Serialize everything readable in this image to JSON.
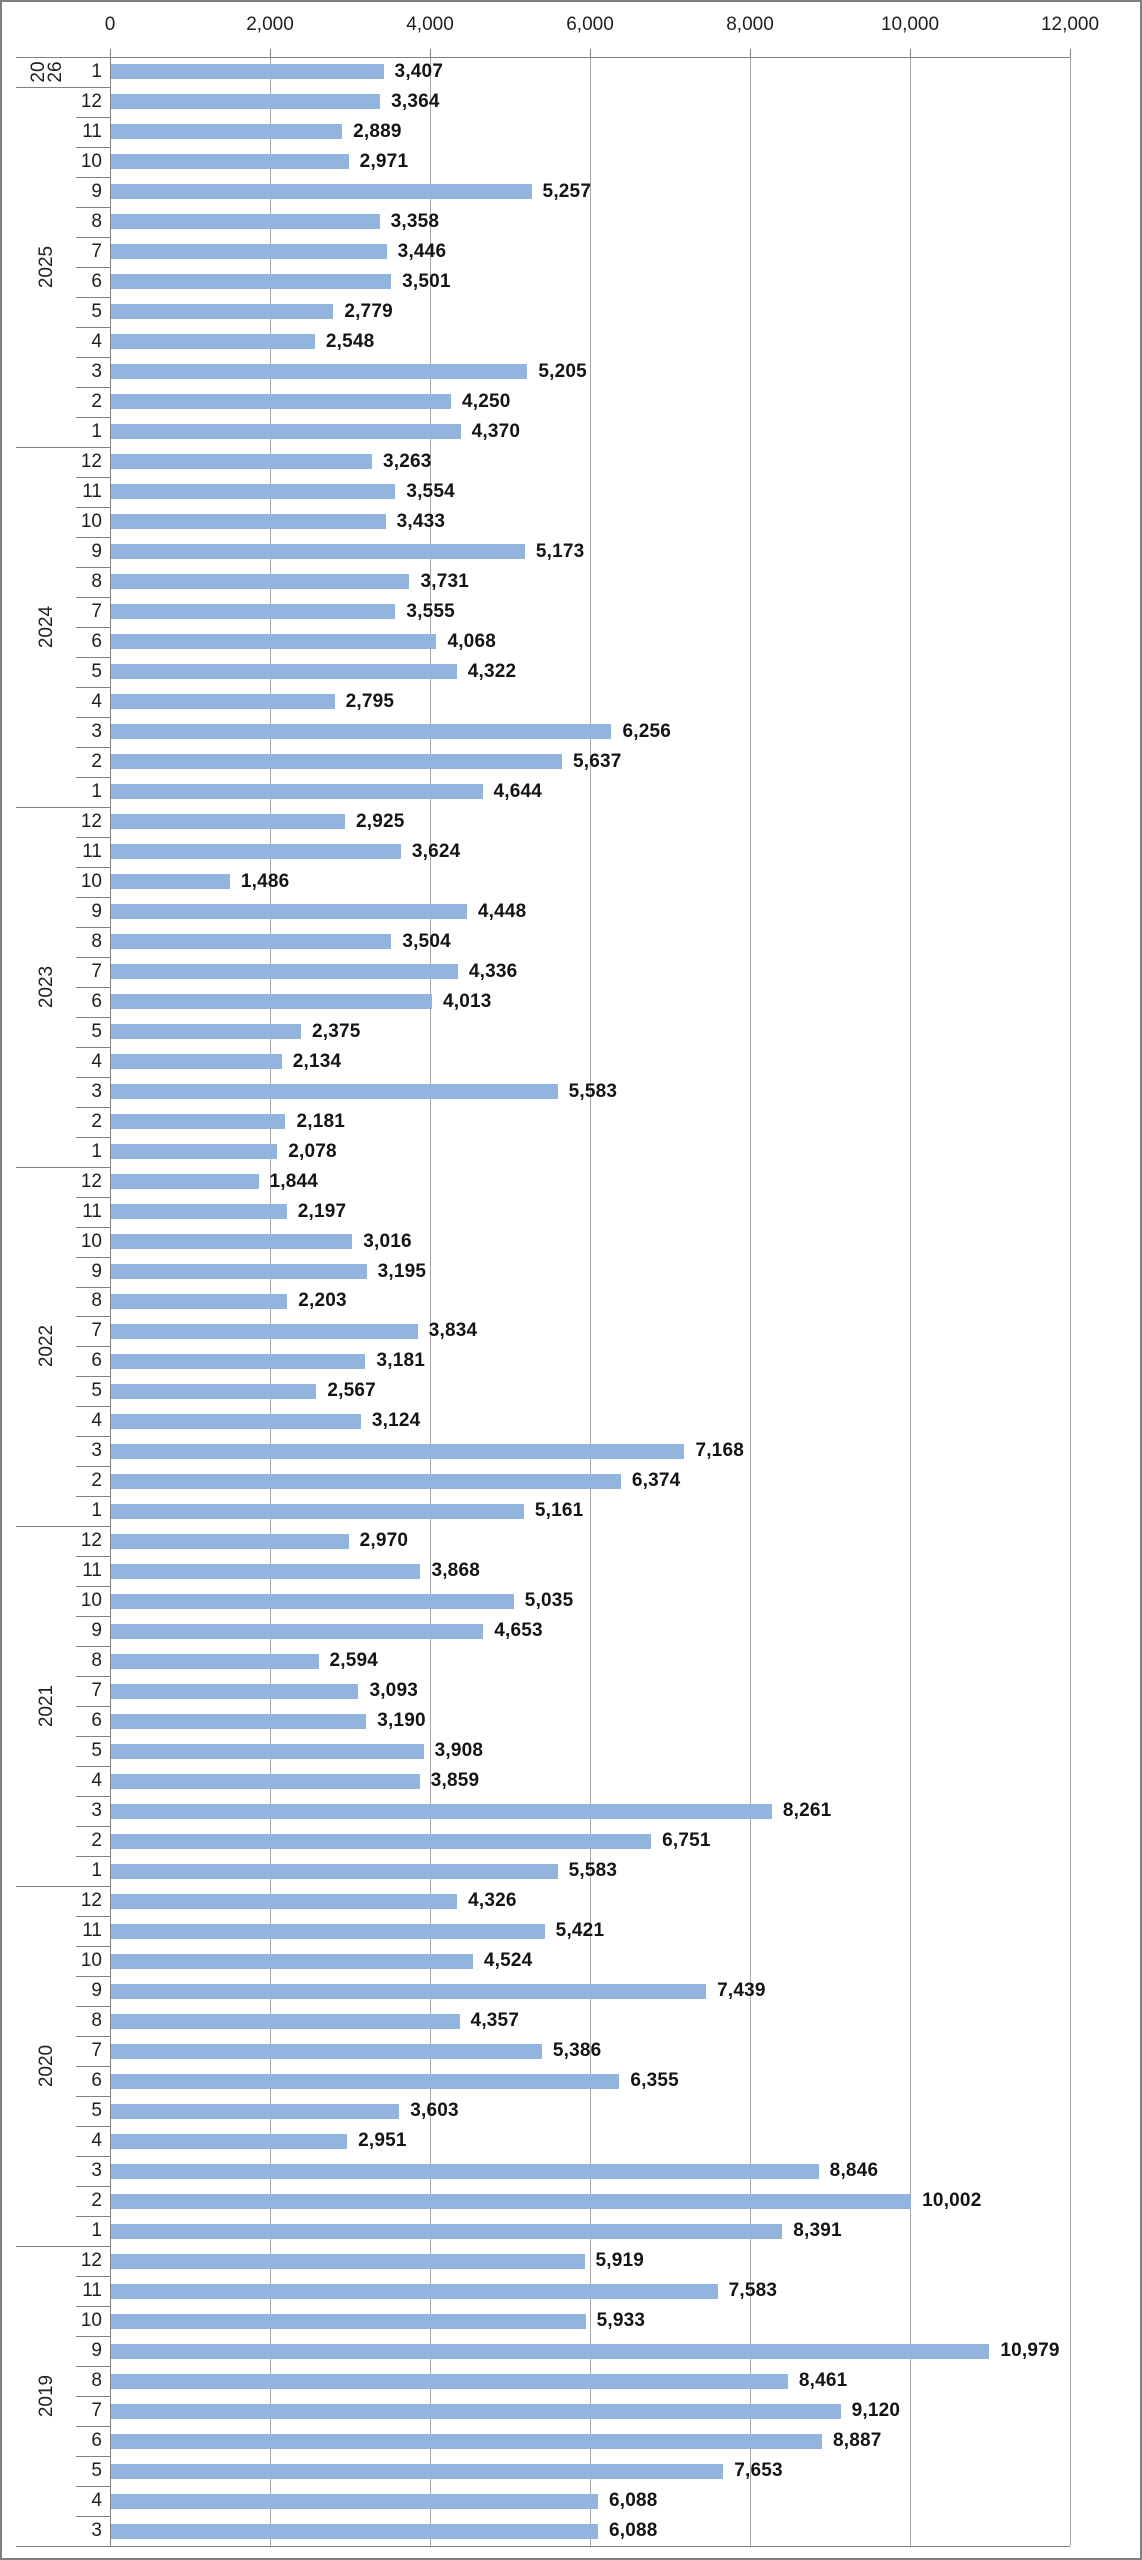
{
  "chart_data": {
    "type": "bar",
    "orientation": "horizontal",
    "title": "",
    "value_axis": {
      "position": "top",
      "min": 0,
      "max": 12000,
      "tick_interval": 2000,
      "tick_labels": [
        "0",
        "2,000",
        "4,000",
        "6,000",
        "8,000",
        "10,000",
        "12,000"
      ]
    },
    "category_axis": {
      "levels": [
        "year",
        "month"
      ],
      "order": "newest-first-top"
    },
    "legend": "none",
    "grid": "vertical-major",
    "colors": {
      "bar": "#92b5df",
      "gridline": "#a6a6a6",
      "axis_line": "#808080",
      "label_text": "#141414",
      "tick_text": "#1f1f1f"
    },
    "groups": [
      {
        "year": "2026",
        "months": [
          {
            "month": "1",
            "value": 3407
          }
        ]
      },
      {
        "year": "2025",
        "months": [
          {
            "month": "12",
            "value": 3364
          },
          {
            "month": "11",
            "value": 2889
          },
          {
            "month": "10",
            "value": 2971
          },
          {
            "month": "9",
            "value": 5257
          },
          {
            "month": "8",
            "value": 3358
          },
          {
            "month": "7",
            "value": 3446
          },
          {
            "month": "6",
            "value": 3501
          },
          {
            "month": "5",
            "value": 2779
          },
          {
            "month": "4",
            "value": 2548
          },
          {
            "month": "3",
            "value": 5205
          },
          {
            "month": "2",
            "value": 4250
          },
          {
            "month": "1",
            "value": 4370
          }
        ]
      },
      {
        "year": "2024",
        "months": [
          {
            "month": "12",
            "value": 3263
          },
          {
            "month": "11",
            "value": 3554
          },
          {
            "month": "10",
            "value": 3433
          },
          {
            "month": "9",
            "value": 5173
          },
          {
            "month": "8",
            "value": 3731
          },
          {
            "month": "7",
            "value": 3555
          },
          {
            "month": "6",
            "value": 4068
          },
          {
            "month": "5",
            "value": 4322
          },
          {
            "month": "4",
            "value": 2795
          },
          {
            "month": "3",
            "value": 6256
          },
          {
            "month": "2",
            "value": 5637
          },
          {
            "month": "1",
            "value": 4644
          }
        ]
      },
      {
        "year": "2023",
        "months": [
          {
            "month": "12",
            "value": 2925
          },
          {
            "month": "11",
            "value": 3624
          },
          {
            "month": "10",
            "value": 1486
          },
          {
            "month": "9",
            "value": 4448
          },
          {
            "month": "8",
            "value": 3504
          },
          {
            "month": "7",
            "value": 4336
          },
          {
            "month": "6",
            "value": 4013
          },
          {
            "month": "5",
            "value": 2375
          },
          {
            "month": "4",
            "value": 2134
          },
          {
            "month": "3",
            "value": 5583
          },
          {
            "month": "2",
            "value": 2181
          },
          {
            "month": "1",
            "value": 2078
          }
        ]
      },
      {
        "year": "2022",
        "months": [
          {
            "month": "12",
            "value": 1844
          },
          {
            "month": "11",
            "value": 2197
          },
          {
            "month": "10",
            "value": 3016
          },
          {
            "month": "9",
            "value": 3195
          },
          {
            "month": "8",
            "value": 2203
          },
          {
            "month": "7",
            "value": 3834
          },
          {
            "month": "6",
            "value": 3181
          },
          {
            "month": "5",
            "value": 2567
          },
          {
            "month": "4",
            "value": 3124
          },
          {
            "month": "3",
            "value": 7168
          },
          {
            "month": "2",
            "value": 6374
          },
          {
            "month": "1",
            "value": 5161
          }
        ]
      },
      {
        "year": "2021",
        "months": [
          {
            "month": "12",
            "value": 2970
          },
          {
            "month": "11",
            "value": 3868
          },
          {
            "month": "10",
            "value": 5035
          },
          {
            "month": "9",
            "value": 4653
          },
          {
            "month": "8",
            "value": 2594
          },
          {
            "month": "7",
            "value": 3093
          },
          {
            "month": "6",
            "value": 3190
          },
          {
            "month": "5",
            "value": 3908
          },
          {
            "month": "4",
            "value": 3859
          },
          {
            "month": "3",
            "value": 8261
          },
          {
            "month": "2",
            "value": 6751
          },
          {
            "month": "1",
            "value": 5583
          }
        ]
      },
      {
        "year": "2020",
        "months": [
          {
            "month": "12",
            "value": 4326
          },
          {
            "month": "11",
            "value": 5421
          },
          {
            "month": "10",
            "value": 4524
          },
          {
            "month": "9",
            "value": 7439
          },
          {
            "month": "8",
            "value": 4357
          },
          {
            "month": "7",
            "value": 5386
          },
          {
            "month": "6",
            "value": 6355
          },
          {
            "month": "5",
            "value": 3603
          },
          {
            "month": "4",
            "value": 2951
          },
          {
            "month": "3",
            "value": 8846
          },
          {
            "month": "2",
            "value": 10002
          },
          {
            "month": "1",
            "value": 8391
          }
        ]
      },
      {
        "year": "2019",
        "months": [
          {
            "month": "12",
            "value": 5919
          },
          {
            "month": "11",
            "value": 7583
          },
          {
            "month": "10",
            "value": 5933
          },
          {
            "month": "9",
            "value": 10979
          },
          {
            "month": "8",
            "value": 8461
          },
          {
            "month": "7",
            "value": 9120
          },
          {
            "month": "6",
            "value": 8887
          },
          {
            "month": "5",
            "value": 7653
          },
          {
            "month": "4",
            "value": 6088
          },
          {
            "month": "3",
            "value": 6088
          }
        ]
      }
    ]
  }
}
